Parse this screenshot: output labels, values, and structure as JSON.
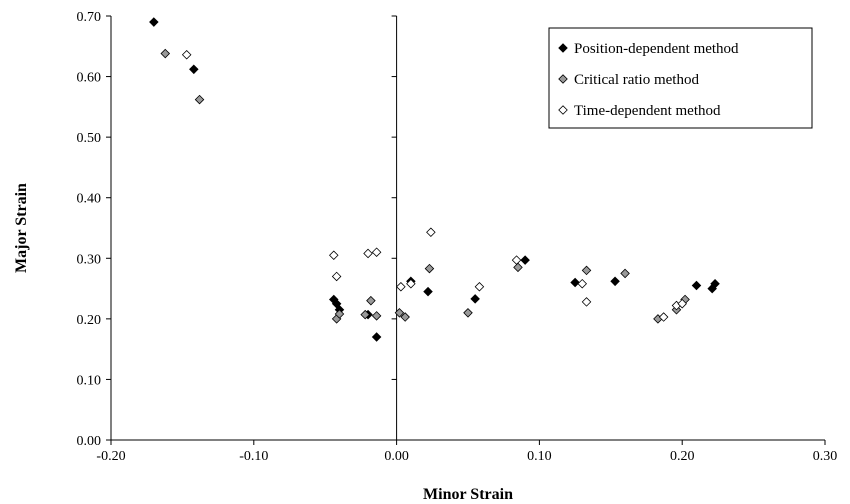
{
  "chart_data": {
    "type": "scatter",
    "title": "",
    "xlabel": "Minor Strain",
    "ylabel": "Major Strain",
    "xlim": [
      -0.2,
      0.3
    ],
    "ylim": [
      0.0,
      0.7
    ],
    "xticks": [
      "-0.20",
      "-0.10",
      "0.00",
      "0.10",
      "0.20",
      "0.30"
    ],
    "yticks": [
      "0.00",
      "0.10",
      "0.20",
      "0.30",
      "0.40",
      "0.50",
      "0.60",
      "0.70"
    ],
    "grid": false,
    "legend_position": "top-right",
    "series": [
      {
        "name": "Position-dependent method",
        "marker": "diamond",
        "fill": "#000000",
        "points": [
          [
            -0.17,
            0.69
          ],
          [
            -0.142,
            0.612
          ],
          [
            -0.044,
            0.232
          ],
          [
            -0.042,
            0.225
          ],
          [
            -0.04,
            0.215
          ],
          [
            -0.02,
            0.207
          ],
          [
            -0.014,
            0.17
          ],
          [
            0.01,
            0.262
          ],
          [
            0.022,
            0.245
          ],
          [
            0.055,
            0.233
          ],
          [
            0.09,
            0.297
          ],
          [
            0.125,
            0.26
          ],
          [
            0.153,
            0.262
          ],
          [
            0.21,
            0.255
          ],
          [
            0.221,
            0.25
          ],
          [
            0.223,
            0.258
          ]
        ]
      },
      {
        "name": "Critical ratio method",
        "marker": "diamond",
        "fill": "#999999",
        "points": [
          [
            -0.162,
            0.638
          ],
          [
            -0.138,
            0.562
          ],
          [
            -0.042,
            0.2
          ],
          [
            -0.04,
            0.208
          ],
          [
            -0.022,
            0.207
          ],
          [
            -0.018,
            0.23
          ],
          [
            -0.014,
            0.205
          ],
          [
            0.002,
            0.21
          ],
          [
            0.006,
            0.203
          ],
          [
            0.023,
            0.283
          ],
          [
            0.05,
            0.21
          ],
          [
            0.085,
            0.285
          ],
          [
            0.133,
            0.28
          ],
          [
            0.16,
            0.275
          ],
          [
            0.183,
            0.2
          ],
          [
            0.196,
            0.215
          ],
          [
            0.202,
            0.232
          ]
        ]
      },
      {
        "name": "Time-dependent method",
        "marker": "diamond",
        "fill": "#ffffff",
        "points": [
          [
            -0.147,
            0.636
          ],
          [
            -0.044,
            0.305
          ],
          [
            -0.042,
            0.27
          ],
          [
            -0.02,
            0.308
          ],
          [
            -0.014,
            0.31
          ],
          [
            0.003,
            0.253
          ],
          [
            0.01,
            0.258
          ],
          [
            0.024,
            0.343
          ],
          [
            0.058,
            0.253
          ],
          [
            0.084,
            0.297
          ],
          [
            0.13,
            0.258
          ],
          [
            0.133,
            0.228
          ],
          [
            0.187,
            0.203
          ],
          [
            0.196,
            0.222
          ],
          [
            0.2,
            0.225
          ]
        ]
      }
    ]
  }
}
